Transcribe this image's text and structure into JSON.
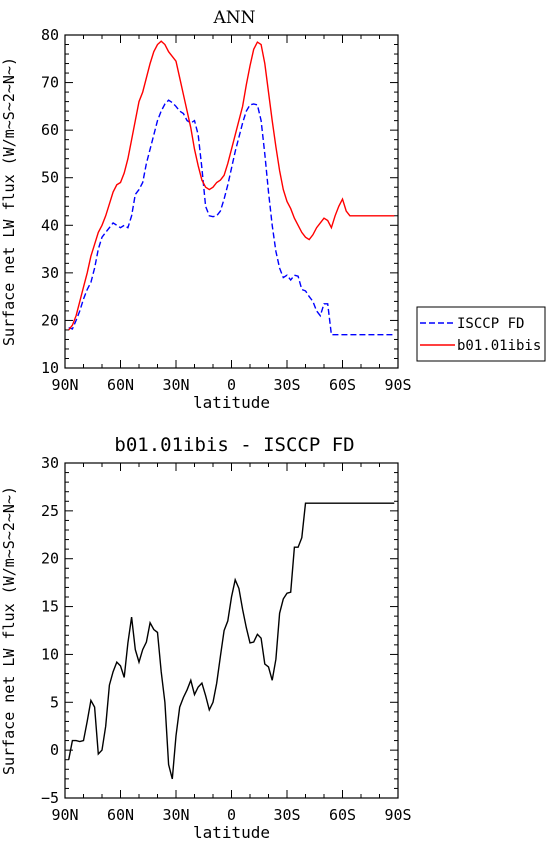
{
  "chart_data": [
    {
      "type": "line",
      "title": "ANN",
      "xlabel": "latitude",
      "ylabel": "Surface net LW flux (W/m~S~2~N~)",
      "xlim": [
        90,
        -90
      ],
      "ylim": [
        10,
        80
      ],
      "xticks": [
        {
          "value": 90,
          "label": "90N"
        },
        {
          "value": 60,
          "label": "60N"
        },
        {
          "value": 30,
          "label": "30N"
        },
        {
          "value": 0,
          "label": "0"
        },
        {
          "value": -30,
          "label": "30S"
        },
        {
          "value": -60,
          "label": "60S"
        },
        {
          "value": -90,
          "label": "90S"
        }
      ],
      "yticks": [
        10,
        20,
        30,
        40,
        50,
        60,
        70,
        80
      ],
      "legend_position": "right",
      "series": [
        {
          "name": "ISCCP FD",
          "color": "#0000ff",
          "dash": "dashed",
          "x": [
            88,
            86,
            84,
            82,
            80,
            78,
            76,
            74,
            72,
            70,
            68,
            66,
            64,
            62,
            60,
            58,
            56,
            54,
            52,
            50,
            48,
            46,
            44,
            42,
            40,
            38,
            36,
            34,
            32,
            30,
            28,
            26,
            24,
            22,
            20,
            18,
            16,
            14,
            12,
            10,
            8,
            6,
            4,
            2,
            0,
            -2,
            -4,
            -6,
            -8,
            -10,
            -12,
            -14,
            -16,
            -18,
            -20,
            -22,
            -24,
            -26,
            -28,
            -30,
            -32,
            -34,
            -36,
            -38,
            -40,
            -42,
            -44,
            -46,
            -48,
            -50,
            -52,
            -54,
            -56,
            -58,
            -60,
            -62,
            -64,
            -66,
            -68,
            -70,
            -72,
            -74,
            -76,
            -78,
            -80,
            -82,
            -84,
            -86,
            -88
          ],
          "y": [
            18.5,
            18.2,
            20.0,
            22.0,
            24.5,
            26.5,
            28.0,
            31.0,
            35.0,
            37.5,
            38.5,
            39.5,
            40.5,
            40.0,
            39.5,
            40.0,
            39.5,
            42.0,
            46.5,
            47.5,
            49.0,
            53.0,
            56.0,
            59.0,
            62.0,
            64.0,
            65.5,
            66.3,
            65.8,
            65.0,
            64.0,
            63.5,
            62.0,
            61.5,
            62.0,
            59.0,
            52.0,
            44.0,
            42.0,
            41.8,
            42.0,
            43.0,
            45.5,
            48.5,
            52.0,
            55.5,
            58.5,
            61.5,
            64.0,
            65.3,
            65.5,
            65.3,
            62.0,
            55.0,
            47.0,
            40.0,
            34.5,
            31.0,
            29.0,
            29.5,
            28.5,
            29.5,
            29.3,
            26.5,
            26.2,
            25.0,
            24.0,
            22.0,
            21.0,
            23.5,
            23.5,
            17.0,
            17.0,
            17.0,
            17.0,
            17.0,
            17.0,
            17.0,
            17.0,
            17.0,
            17.0,
            17.0,
            17.0,
            17.0,
            17.0,
            17.0,
            17.0,
            17.0,
            17.0
          ]
        },
        {
          "name": "b01.01ibis",
          "color": "#ff0000",
          "dash": "solid",
          "x": [
            88,
            86,
            84,
            82,
            80,
            78,
            76,
            74,
            72,
            70,
            68,
            66,
            64,
            62,
            60,
            58,
            56,
            54,
            52,
            50,
            48,
            46,
            44,
            42,
            40,
            38,
            36,
            34,
            32,
            30,
            28,
            26,
            24,
            22,
            20,
            18,
            16,
            14,
            12,
            10,
            8,
            6,
            4,
            2,
            0,
            -2,
            -4,
            -6,
            -8,
            -10,
            -12,
            -14,
            -16,
            -18,
            -20,
            -22,
            -24,
            -26,
            -28,
            -30,
            -32,
            -34,
            -36,
            -38,
            -40,
            -42,
            -44,
            -46,
            -48,
            -50,
            -52,
            -54,
            -56,
            -58,
            -60,
            -62,
            -64,
            -66,
            -68,
            -70,
            -72,
            -74,
            -76,
            -78,
            -80,
            -82,
            -84,
            -86,
            -88
          ],
          "y": [
            18.0,
            19.0,
            21.0,
            24.0,
            27.0,
            30.0,
            33.5,
            36.0,
            38.5,
            40.0,
            42.0,
            44.5,
            47.0,
            48.5,
            49.0,
            51.0,
            54.0,
            58.0,
            62.0,
            66.0,
            68.0,
            71.0,
            74.0,
            76.5,
            78.0,
            78.7,
            78.0,
            76.5,
            75.5,
            74.5,
            71.0,
            67.5,
            64.0,
            60.5,
            56.0,
            52.5,
            49.5,
            48.0,
            47.5,
            48.0,
            49.0,
            49.5,
            50.5,
            53.0,
            56.0,
            59.0,
            62.0,
            65.0,
            69.5,
            73.5,
            77.0,
            78.5,
            78.0,
            74.0,
            68.0,
            62.0,
            56.5,
            51.5,
            47.5,
            45.0,
            43.5,
            41.5,
            40.0,
            38.5,
            37.5,
            37.0,
            38.0,
            39.5,
            40.5,
            41.5,
            41.0,
            39.5,
            42.0,
            44.0,
            45.5,
            43.0,
            42.0,
            42.0,
            42.0,
            42.0,
            42.0,
            42.0,
            42.0,
            42.0,
            42.0,
            42.0,
            42.0,
            42.0,
            42.0
          ]
        }
      ]
    },
    {
      "type": "line",
      "title": "b01.01ibis - ISCCP FD",
      "xlabel": "latitude",
      "ylabel": "Surface net LW flux (W/m~S~2~N~)",
      "xlim": [
        90,
        -90
      ],
      "ylim": [
        -5,
        30
      ],
      "xticks": [
        {
          "value": 90,
          "label": "90N"
        },
        {
          "value": 60,
          "label": "60N"
        },
        {
          "value": 30,
          "label": "30N"
        },
        {
          "value": 0,
          "label": "0"
        },
        {
          "value": -30,
          "label": "30S"
        },
        {
          "value": -60,
          "label": "60S"
        },
        {
          "value": -90,
          "label": "90S"
        }
      ],
      "yticks": [
        -5,
        0,
        5,
        10,
        15,
        20,
        25,
        30
      ],
      "series": [
        {
          "name": "",
          "color": "#000000",
          "dash": "solid",
          "x": [
            88,
            86,
            84,
            82,
            80,
            78,
            76,
            74,
            72,
            70,
            68,
            66,
            64,
            62,
            60,
            58,
            56,
            54,
            52,
            50,
            48,
            46,
            44,
            42,
            40,
            38,
            36,
            34,
            32,
            30,
            28,
            26,
            24,
            22,
            20,
            18,
            16,
            14,
            12,
            10,
            8,
            6,
            4,
            2,
            0,
            -2,
            -4,
            -6,
            -8,
            -10,
            -12,
            -14,
            -16,
            -18,
            -20,
            -22,
            -24,
            -26,
            -28,
            -30,
            -32,
            -34,
            -36,
            -38,
            -40,
            -42,
            -44,
            -46,
            -48,
            -50,
            -52,
            -54,
            -56,
            -58,
            -60,
            -62,
            -64,
            -66,
            -68,
            -70,
            -72,
            -74,
            -76,
            -78,
            -80,
            -82,
            -84,
            -86,
            -88
          ],
          "y": [
            -1.0,
            1.0,
            1.0,
            0.9,
            1.0,
            3.0,
            5.2,
            4.5,
            -0.4,
            0.0,
            2.5,
            6.8,
            8.2,
            9.2,
            8.8,
            7.6,
            11.2,
            13.9,
            10.5,
            9.2,
            10.5,
            11.3,
            13.3,
            12.6,
            12.3,
            8.2,
            5.0,
            -1.5,
            -3.0,
            1.5,
            4.5,
            5.5,
            6.3,
            7.3,
            5.8,
            6.6,
            7.0,
            5.7,
            4.2,
            5.0,
            7.0,
            9.8,
            12.5,
            13.5,
            16.0,
            17.8,
            16.9,
            14.7,
            12.8,
            11.2,
            11.3,
            12.1,
            11.7,
            9.0,
            8.7,
            7.3,
            9.5,
            14.3,
            15.8,
            16.4,
            16.5,
            21.2,
            21.2,
            22.2,
            25.8,
            25.8,
            25.8,
            25.8,
            25.8,
            25.8,
            25.8,
            25.8,
            25.8,
            25.8,
            25.8,
            25.8,
            25.8,
            25.8,
            25.8,
            25.8,
            25.8,
            25.8,
            25.8,
            25.8,
            25.8,
            25.8,
            25.8,
            25.8,
            25.8
          ]
        }
      ]
    }
  ]
}
